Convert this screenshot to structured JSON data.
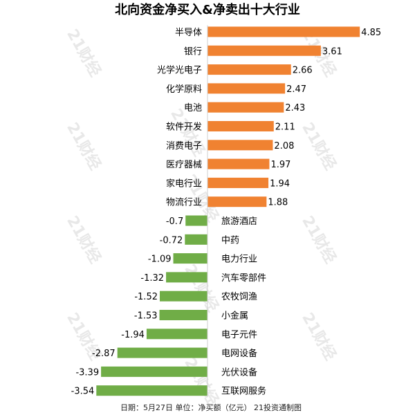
{
  "chart_data": {
    "type": "bar",
    "orientation": "horizontal",
    "title": "北向资金净买入&净卖出十大行业",
    "categories": [
      "半导体",
      "银行",
      "光学光电子",
      "化学原料",
      "电池",
      "软件开发",
      "消费电子",
      "医疗器械",
      "家电行业",
      "物流行业",
      "旅游酒店",
      "中药",
      "电力行业",
      "汽车零部件",
      "农牧饲渔",
      "小金属",
      "电子元件",
      "电网设备",
      "光伏设备",
      "互联网服务"
    ],
    "values": [
      4.85,
      3.61,
      2.66,
      2.47,
      2.43,
      2.11,
      2.08,
      1.97,
      1.94,
      1.88,
      -0.7,
      -0.72,
      -1.09,
      -1.32,
      -1.52,
      -1.53,
      -1.94,
      -2.87,
      -3.39,
      -3.54
    ],
    "value_labels": [
      "4.85",
      "3.61",
      "2.66",
      "2.47",
      "2.43",
      "2.11",
      "2.08",
      "1.97",
      "1.94",
      "1.88",
      "-0.7",
      "-0.72",
      "-1.09",
      "-1.32",
      "-1.52",
      "-1.53",
      "-1.94",
      "-2.87",
      "-3.39",
      "-3.54"
    ],
    "colors": {
      "positive": "#F08231",
      "negative": "#70AD47"
    },
    "footer": "日期：5月27日 单位：净买额（亿元） 21投资通制图",
    "watermark": "21财经",
    "grid": false,
    "legend": "none"
  }
}
